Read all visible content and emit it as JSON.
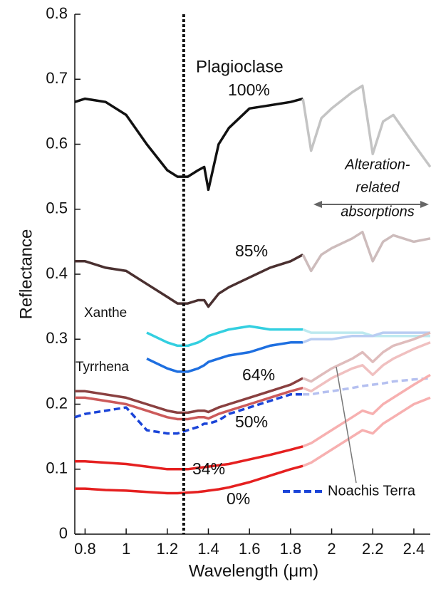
{
  "chart_data": {
    "type": "line",
    "x_label": "Wavelength (μm)",
    "y_label": "Reflectance",
    "xlim": [
      0.75,
      2.48
    ],
    "ylim": [
      0,
      0.8
    ],
    "xticks": [
      0.8,
      1,
      1.2,
      1.4,
      1.6,
      1.8,
      2,
      2.2,
      2.4
    ],
    "yticks": [
      0,
      0.1,
      0.2,
      0.3,
      0.4,
      0.5,
      0.6,
      0.7,
      0.8
    ],
    "vline": 1.28,
    "vline_label": "Plagioclase",
    "faded_after_x": 1.86,
    "annotation_lines": [
      "Alteration-",
      "related",
      "absorptions"
    ],
    "x": [
      0.75,
      0.8,
      0.9,
      1.0,
      1.1,
      1.2,
      1.25,
      1.3,
      1.35,
      1.38,
      1.4,
      1.45,
      1.5,
      1.6,
      1.7,
      1.8,
      1.86,
      1.9,
      1.95,
      2.0,
      2.1,
      2.15,
      2.2,
      2.25,
      2.3,
      2.4,
      2.48
    ],
    "series": [
      {
        "name": "100%",
        "color": "#111111",
        "faded_color": "#c4c4c4",
        "values": [
          0.665,
          0.67,
          0.665,
          0.645,
          0.6,
          0.56,
          0.55,
          0.55,
          0.56,
          0.565,
          0.53,
          0.6,
          0.625,
          0.655,
          0.66,
          0.665,
          0.67,
          0.59,
          0.64,
          0.655,
          0.68,
          0.69,
          0.585,
          0.635,
          0.645,
          0.6,
          0.565
        ]
      },
      {
        "name": "85%",
        "color": "#4a3030",
        "faded_color": "#cdbcbc",
        "values": [
          0.42,
          0.42,
          0.41,
          0.405,
          0.385,
          0.365,
          0.355,
          0.355,
          0.36,
          0.36,
          0.35,
          0.37,
          0.38,
          0.395,
          0.41,
          0.42,
          0.43,
          0.405,
          0.43,
          0.44,
          0.455,
          0.465,
          0.42,
          0.45,
          0.46,
          0.45,
          0.455
        ]
      },
      {
        "name": "Xanthe",
        "color": "#33cfe0",
        "faded_color": "#bde9ef",
        "values": [
          null,
          null,
          null,
          null,
          0.31,
          0.295,
          0.29,
          0.29,
          0.295,
          0.3,
          0.305,
          0.31,
          0.315,
          0.32,
          0.315,
          0.315,
          0.315,
          0.31,
          0.31,
          0.31,
          0.31,
          0.31,
          0.305,
          0.305,
          0.305,
          0.305,
          0.305
        ]
      },
      {
        "name": "Tyrrhena",
        "color": "#1e6fe0",
        "faded_color": "#b9cdf2",
        "values": [
          null,
          null,
          null,
          null,
          0.27,
          0.255,
          0.25,
          0.25,
          0.255,
          0.26,
          0.265,
          0.27,
          0.275,
          0.28,
          0.29,
          0.295,
          0.295,
          0.3,
          0.3,
          0.3,
          0.305,
          0.305,
          0.305,
          0.31,
          0.31,
          0.31,
          0.31
        ]
      },
      {
        "name": "64%",
        "color": "#8a4040",
        "faded_color": "#dfbcbc",
        "values": [
          0.22,
          0.22,
          0.215,
          0.21,
          0.2,
          0.19,
          0.187,
          0.187,
          0.19,
          0.19,
          0.188,
          0.195,
          0.2,
          0.21,
          0.22,
          0.23,
          0.24,
          0.235,
          0.245,
          0.255,
          0.27,
          0.28,
          0.265,
          0.28,
          0.29,
          0.3,
          0.31
        ]
      },
      {
        "name": "50%",
        "color": "#cc5a5a",
        "faded_color": "#f0c0c0",
        "values": [
          0.21,
          0.21,
          0.205,
          0.2,
          0.19,
          0.18,
          0.177,
          0.177,
          0.18,
          0.18,
          0.178,
          0.185,
          0.19,
          0.2,
          0.21,
          0.22,
          0.225,
          0.22,
          0.23,
          0.24,
          0.255,
          0.26,
          0.245,
          0.26,
          0.27,
          0.285,
          0.295
        ]
      },
      {
        "name": "Noachis Terra",
        "color": "#1a44d8",
        "faded_color": "#b5c0f0",
        "dashed": true,
        "values": [
          0.18,
          0.185,
          0.19,
          0.195,
          0.16,
          0.155,
          0.155,
          0.16,
          0.165,
          0.17,
          0.17,
          0.175,
          0.185,
          0.195,
          0.205,
          0.215,
          0.215,
          0.215,
          0.218,
          0.22,
          0.225,
          0.228,
          0.23,
          0.232,
          0.235,
          0.238,
          0.24
        ]
      },
      {
        "name": "34%",
        "color": "#e52020",
        "faded_color": "#f7b0b0",
        "values": [
          0.112,
          0.112,
          0.11,
          0.108,
          0.104,
          0.1,
          0.1,
          0.1,
          0.102,
          0.103,
          0.104,
          0.106,
          0.108,
          0.115,
          0.122,
          0.13,
          0.135,
          0.14,
          0.15,
          0.16,
          0.18,
          0.19,
          0.185,
          0.2,
          0.21,
          0.23,
          0.245
        ]
      },
      {
        "name": "0%",
        "color": "#e52020",
        "faded_color": "#f7b0b0",
        "values": [
          0.07,
          0.07,
          0.068,
          0.067,
          0.065,
          0.063,
          0.063,
          0.064,
          0.065,
          0.066,
          0.067,
          0.069,
          0.072,
          0.08,
          0.09,
          0.1,
          0.105,
          0.11,
          0.12,
          0.13,
          0.15,
          0.16,
          0.155,
          0.17,
          0.18,
          0.2,
          0.21
        ]
      }
    ]
  }
}
